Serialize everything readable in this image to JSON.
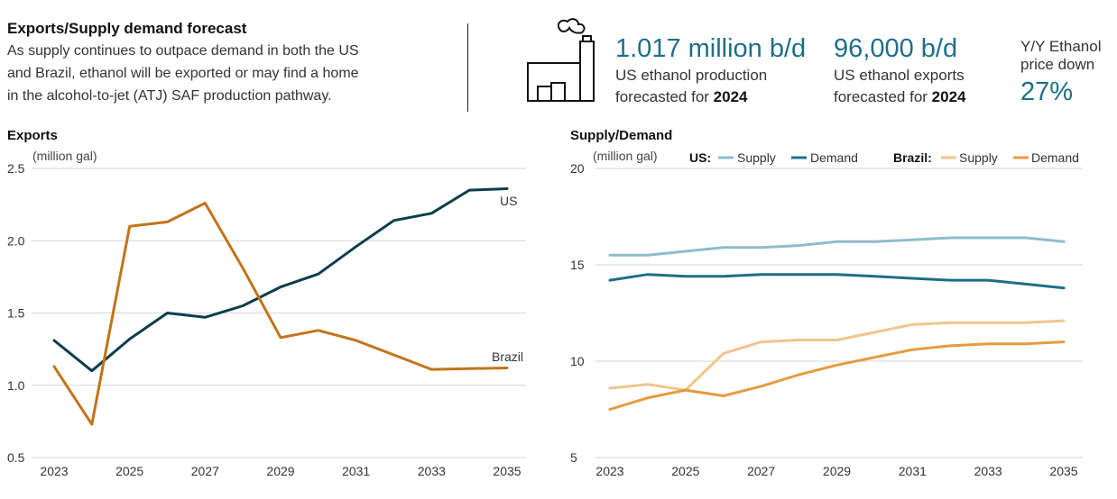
{
  "header": {
    "title": "Exports/Supply demand forecast",
    "lines": [
      "As supply continues to outpace demand in both the US",
      "and Brazil, ethanol will be exported or may find a home",
      "in the alcohol-to-jet (ATJ) SAF production pathway."
    ]
  },
  "stats": [
    {
      "value": "1.017 million b/d",
      "line1": "US ethanol production",
      "line2_prefix": "forecasted for ",
      "line2_bold": "2024"
    },
    {
      "value": "96,000 b/d",
      "line1": "US ethanol exports",
      "line2_prefix": "forecasted for ",
      "line2_bold": "2024"
    },
    {
      "label_line1": "Y/Y Ethanol",
      "label_line2": "price down",
      "value": "27%"
    }
  ],
  "colors": {
    "us_supply": "#8fbccb",
    "us_demand": "#1d6f86",
    "br_supply": "#f2c48e",
    "br_demand": "#e79a3e",
    "us_exports": "#0d3d4a",
    "br_exports": "#c27418",
    "accent": "#1d6f86"
  },
  "chart_data": [
    {
      "type": "line",
      "title": "Exports",
      "ylabel": "(million gal)",
      "ylim": [
        0.5,
        2.5
      ],
      "yticks": [
        0.5,
        1.0,
        1.5,
        2.0,
        2.5
      ],
      "ytick_labels": [
        "0.5",
        "1.0",
        "1.5",
        "2.0",
        "2.5"
      ],
      "xlim": [
        2023,
        2035
      ],
      "xticks": [
        2023,
        2025,
        2027,
        2029,
        2031,
        2033,
        2035
      ],
      "x": [
        2023,
        2024,
        2025,
        2026,
        2027,
        2028,
        2029,
        2030,
        2031,
        2032,
        2033,
        2034,
        2035
      ],
      "grid": true,
      "series": [
        {
          "name": "US",
          "color": "#0d3d4a",
          "values": [
            1.31,
            1.1,
            1.32,
            1.5,
            1.47,
            1.55,
            1.68,
            1.77,
            1.96,
            2.14,
            2.19,
            2.35,
            2.36
          ]
        },
        {
          "name": "Brazil",
          "color": "#c27418",
          "values": [
            1.13,
            0.73,
            2.1,
            2.13,
            2.26,
            1.81,
            1.33,
            1.38,
            1.31,
            1.21,
            1.11,
            1.115,
            1.12
          ]
        }
      ]
    },
    {
      "type": "line",
      "title": "Supply/Demand",
      "ylabel": "(million gal)",
      "ylim": [
        5,
        20
      ],
      "yticks": [
        5,
        10,
        15,
        20
      ],
      "ytick_labels": [
        "5",
        "10",
        "15",
        "20"
      ],
      "xlim": [
        2023,
        2035
      ],
      "xticks": [
        2023,
        2025,
        2027,
        2029,
        2031,
        2033,
        2035
      ],
      "x": [
        2023,
        2024,
        2025,
        2026,
        2027,
        2028,
        2029,
        2030,
        2031,
        2032,
        2033,
        2034,
        2035
      ],
      "grid": true,
      "legend": {
        "placement": "top",
        "groups": [
          {
            "label": "US:",
            "items": [
              {
                "name": "Supply",
                "color": "#8fbccb"
              },
              {
                "name": "Demand",
                "color": "#1d6f86"
              }
            ]
          },
          {
            "label": "Brazil:",
            "items": [
              {
                "name": "Supply",
                "color": "#f2c48e"
              },
              {
                "name": "Demand",
                "color": "#e79a3e"
              }
            ]
          }
        ]
      },
      "series": [
        {
          "group": "US",
          "name": "Supply",
          "color": "#8fbccb",
          "values": [
            15.5,
            15.5,
            15.7,
            15.9,
            15.9,
            16.0,
            16.2,
            16.2,
            16.3,
            16.4,
            16.4,
            16.4,
            16.2
          ]
        },
        {
          "group": "US",
          "name": "Demand",
          "color": "#1d6f86",
          "values": [
            14.2,
            14.5,
            14.4,
            14.4,
            14.5,
            14.5,
            14.5,
            14.4,
            14.3,
            14.2,
            14.2,
            14.0,
            13.8
          ]
        },
        {
          "group": "Brazil",
          "name": "Supply",
          "color": "#f2c48e",
          "values": [
            8.6,
            8.8,
            8.5,
            10.4,
            11.0,
            11.1,
            11.1,
            11.5,
            11.9,
            12.0,
            12.0,
            12.0,
            12.1
          ]
        },
        {
          "group": "Brazil",
          "name": "Demand",
          "color": "#e79a3e",
          "values": [
            7.5,
            8.1,
            8.5,
            8.2,
            8.7,
            9.3,
            9.8,
            10.2,
            10.6,
            10.8,
            10.9,
            10.9,
            11.0
          ]
        }
      ]
    }
  ]
}
